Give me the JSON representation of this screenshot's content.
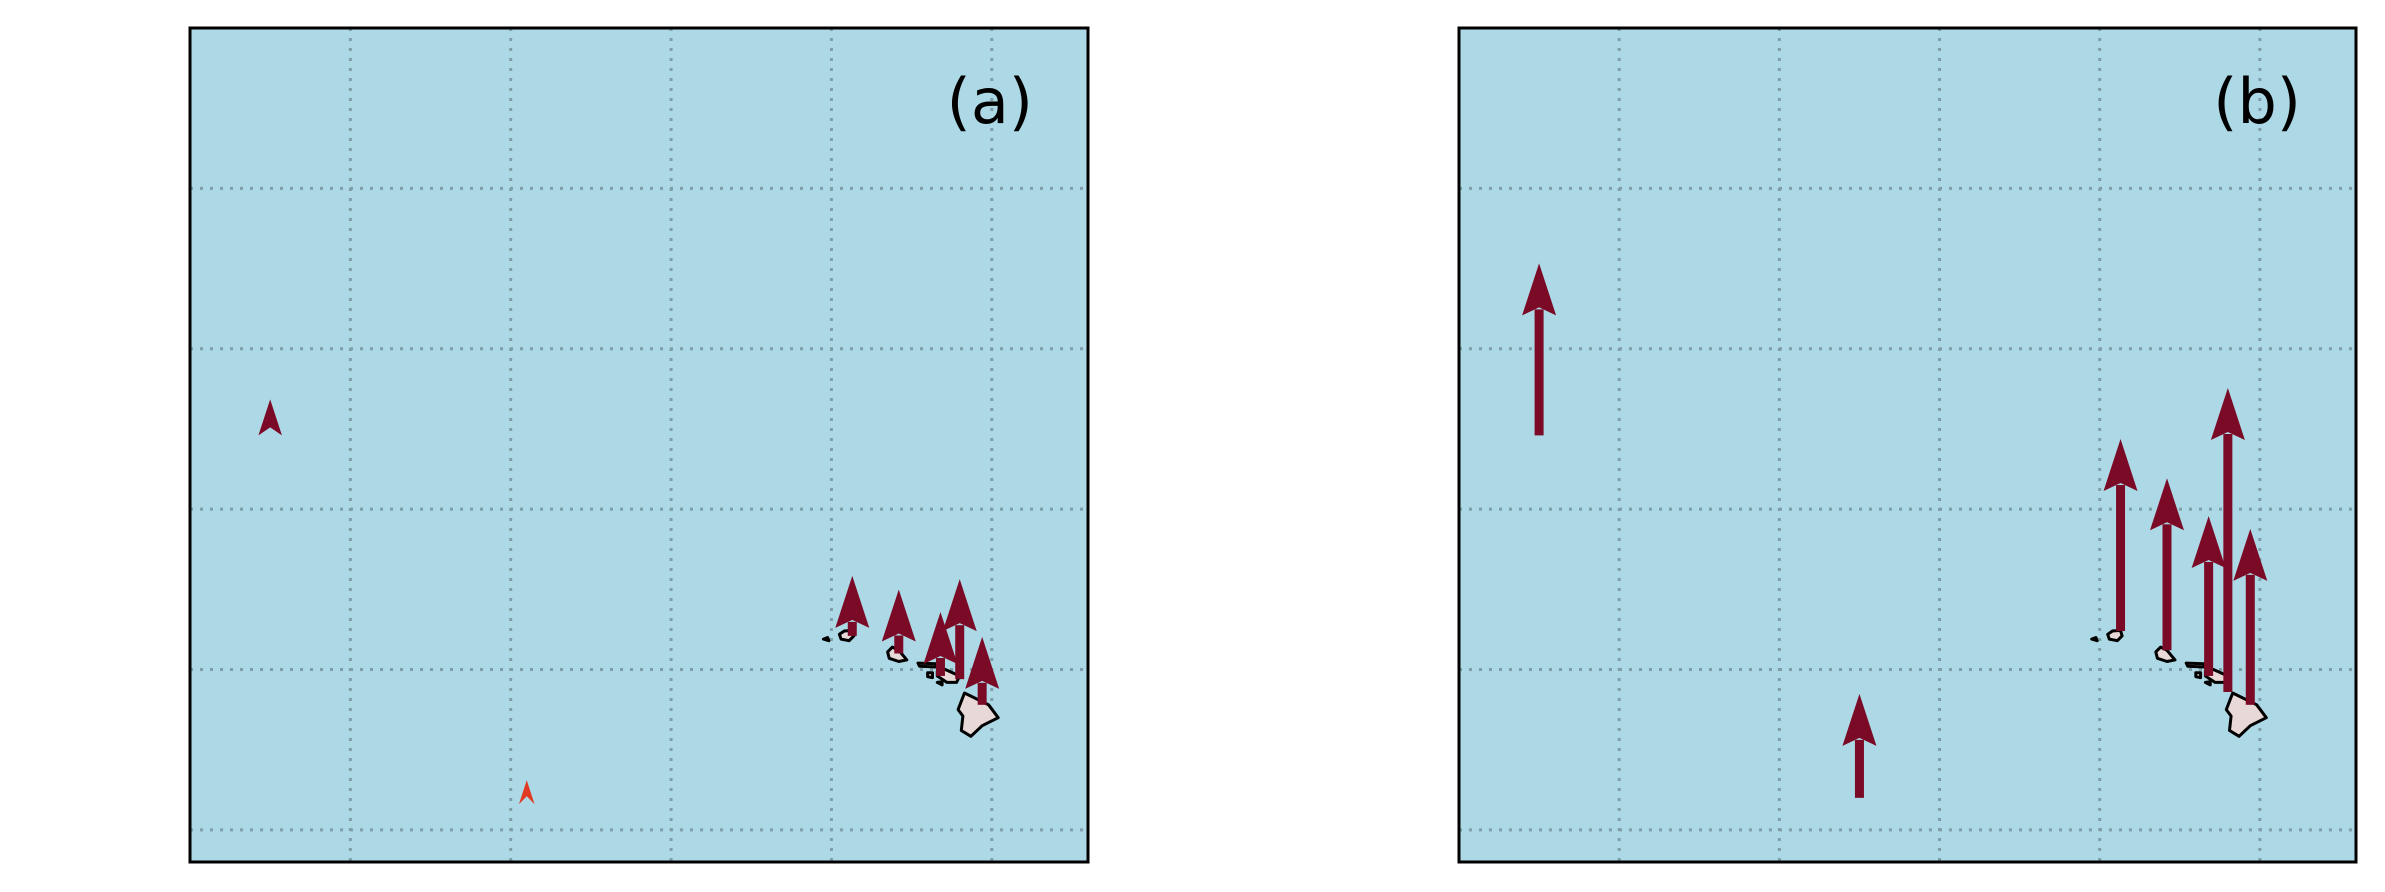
{
  "colors": {
    "ocean": "#add8e6",
    "land": "#e8d8d8",
    "arrow": "#7b0a26",
    "arrow_highlight": "#e03a22"
  },
  "panels": [
    {
      "label": "(a)",
      "arrows": [
        {
          "lon": -177.5,
          "lat": 28.3,
          "v": 0.9,
          "highlight": false
        },
        {
          "lon": -169.5,
          "lat": 16.8,
          "v": 0.6,
          "highlight": true
        },
        {
          "lon": -159.35,
          "lat": 22.05,
          "v": 1.5,
          "highlight": false
        },
        {
          "lon": -157.9,
          "lat": 21.5,
          "v": 1.6,
          "highlight": false
        },
        {
          "lon": -156.6,
          "lat": 20.8,
          "v": 1.6,
          "highlight": false
        },
        {
          "lon": -156.0,
          "lat": 20.7,
          "v": 2.5,
          "highlight": false
        },
        {
          "lon": -155.3,
          "lat": 19.9,
          "v": 1.7,
          "highlight": false
        }
      ]
    },
    {
      "label": "(b)",
      "arrows": [
        {
          "lon": -177.5,
          "lat": 28.3,
          "v": 4.3,
          "highlight": false
        },
        {
          "lon": -167.5,
          "lat": 17.0,
          "v": 2.6,
          "highlight": false
        },
        {
          "lon": -159.35,
          "lat": 22.2,
          "v": 4.8,
          "highlight": false
        },
        {
          "lon": -157.9,
          "lat": 21.6,
          "v": 4.3,
          "highlight": false
        },
        {
          "lon": -156.6,
          "lat": 20.8,
          "v": 4.0,
          "highlight": false
        },
        {
          "lon": -156.0,
          "lat": 20.3,
          "v": 7.6,
          "highlight": false
        },
        {
          "lon": -155.3,
          "lat": 19.9,
          "v": 4.4,
          "highlight": false
        }
      ]
    }
  ]
}
